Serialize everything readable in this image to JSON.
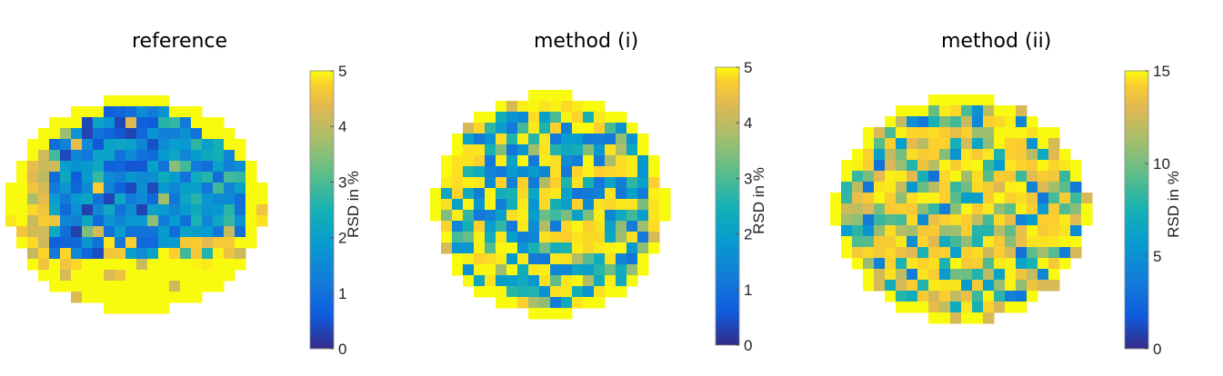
{
  "chart_data": [
    {
      "type": "heatmap",
      "title": "reference",
      "colorbar": {
        "label": "RSD in %",
        "min": 0,
        "max": 5,
        "ticks": [
          0,
          1,
          2,
          3,
          4,
          5
        ]
      },
      "colormap": "parula",
      "seed": 11,
      "pattern": "reference"
    },
    {
      "type": "heatmap",
      "title": "method (i)",
      "colorbar": {
        "label": "RSD in %",
        "min": 0,
        "max": 5,
        "ticks": [
          0,
          1,
          2,
          3,
          4,
          5
        ]
      },
      "colormap": "parula",
      "seed": 23,
      "pattern": "method1"
    },
    {
      "type": "heatmap",
      "title": "method (ii)",
      "colorbar": {
        "label": "RSD in %",
        "min": 0,
        "max": 15,
        "ticks": [
          0,
          5,
          10,
          15
        ]
      },
      "colormap": "parula",
      "seed": 37,
      "pattern": "method2"
    }
  ]
}
